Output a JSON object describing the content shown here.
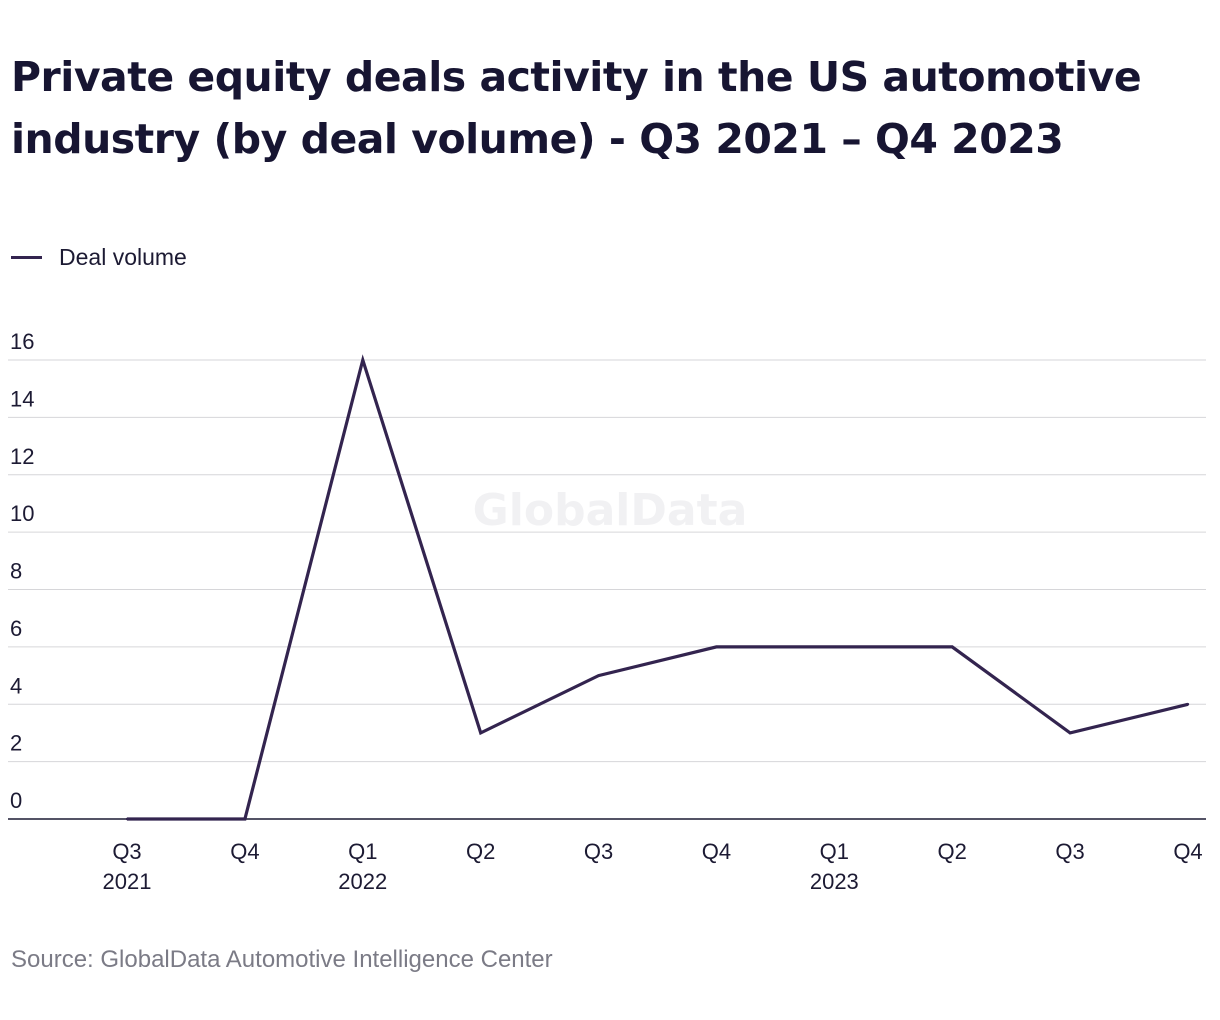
{
  "watermark": "GlobalData",
  "source": "Source: GlobalData Automotive Intelligence Center",
  "chart_data": {
    "type": "line",
    "title": "Private equity deals activity in the US automotive industry (by deal volume) - Q3 2021 – Q4 2023",
    "categories": [
      {
        "quarter": "Q3",
        "year": "2021"
      },
      {
        "quarter": "Q4",
        "year": ""
      },
      {
        "quarter": "Q1",
        "year": "2022"
      },
      {
        "quarter": "Q2",
        "year": ""
      },
      {
        "quarter": "Q3",
        "year": ""
      },
      {
        "quarter": "Q4",
        "year": ""
      },
      {
        "quarter": "Q1",
        "year": "2023"
      },
      {
        "quarter": "Q2",
        "year": ""
      },
      {
        "quarter": "Q3",
        "year": ""
      },
      {
        "quarter": "Q4",
        "year": ""
      }
    ],
    "series": [
      {
        "name": "Deal volume",
        "values": [
          0,
          0,
          16,
          3,
          5,
          6,
          6,
          6,
          3,
          4
        ],
        "color": "#33244f"
      }
    ],
    "yticks": [
      "0",
      "2",
      "4",
      "6",
      "8",
      "10",
      "12",
      "14",
      "16"
    ],
    "ylim": [
      0,
      16
    ],
    "grid": true,
    "legend": "top-left",
    "xlabel": "",
    "ylabel": ""
  }
}
